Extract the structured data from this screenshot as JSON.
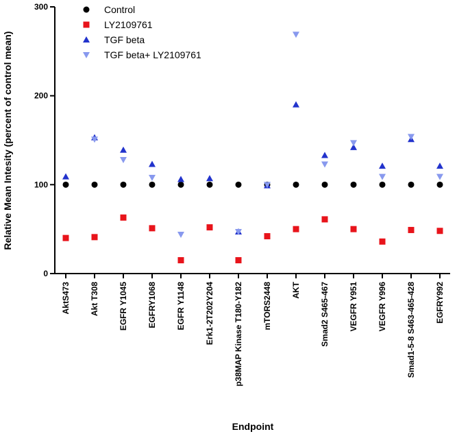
{
  "chart_data": {
    "type": "scatter",
    "title": "",
    "xlabel": "Endpoint",
    "ylabel": "Relative Mean Intesity (percent of control mean)",
    "ylim": [
      0,
      300
    ],
    "yticks": [
      0,
      100,
      200,
      300
    ],
    "grid": false,
    "legend_position": "top-left",
    "categories": [
      "AktS473",
      "Akt T308",
      "EGFR Y1045",
      "EGFRY1068",
      "EGFR Y1148",
      "Erk1-2T202Y204",
      "p38MAP Kinase T180-Y182",
      "mTORS2448",
      "AKT",
      "Smad2 S465-467",
      "VEGFR Y951",
      "VEGFR Y996",
      "Smad1-5-8 S463-465-428",
      "EGFRY992"
    ],
    "series": [
      {
        "name": "Control",
        "marker": "circle",
        "color": "#000000",
        "values": [
          100,
          100,
          100,
          100,
          100,
          100,
          100,
          100,
          100,
          100,
          100,
          100,
          100,
          100
        ]
      },
      {
        "name": "LY2109761",
        "marker": "square",
        "color": "#e8141b",
        "values": [
          40,
          41,
          63,
          51,
          15,
          52,
          15,
          42,
          50,
          61,
          50,
          36,
          49,
          48
        ]
      },
      {
        "name": "TGF beta",
        "marker": "triangle-up",
        "color": "#2233cc",
        "values": [
          109,
          153,
          139,
          123,
          106,
          107,
          47,
          99,
          190,
          133,
          142,
          121,
          151,
          121
        ]
      },
      {
        "name": "TGF beta+ LY2109761",
        "marker": "triangle-down",
        "color": "#8899ee",
        "values": [
          null,
          151,
          128,
          108,
          44,
          null,
          47,
          100,
          269,
          123,
          147,
          109,
          154,
          109
        ]
      }
    ]
  }
}
